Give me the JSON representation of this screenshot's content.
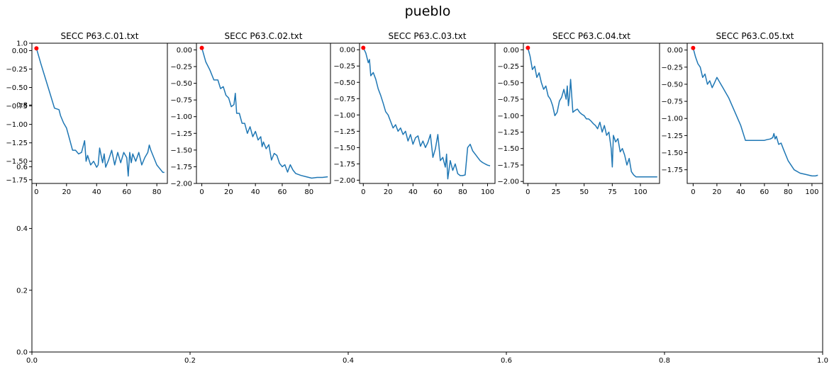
{
  "figure": {
    "title": "pueblo"
  },
  "chart_data": [
    {
      "type": "line",
      "role": "background-axes",
      "title": "",
      "xlim": [
        0,
        1
      ],
      "ylim": [
        0,
        1
      ],
      "x_ticks": [
        0.0,
        0.2,
        0.4,
        0.6,
        0.8,
        1.0
      ],
      "x_tick_labels": [
        "0.0",
        "0.2",
        "0.4",
        "0.6",
        "0.8",
        "1.0"
      ],
      "y_ticks": [
        0.0,
        0.2,
        0.4,
        0.6,
        0.8,
        1.0
      ],
      "y_tick_labels": [
        "0.0",
        "0.2",
        "0.4",
        "0.6",
        "0.8",
        "1.0"
      ],
      "series": []
    },
    {
      "type": "line",
      "title": "SECC P63.C.01.txt",
      "xlim": [
        -3,
        87
      ],
      "ylim": [
        -1.8,
        0.1
      ],
      "x_ticks": [
        0,
        20,
        40,
        60,
        80
      ],
      "x_tick_labels": [
        "0",
        "20",
        "40",
        "60",
        "80"
      ],
      "y_ticks": [
        0.0,
        -0.25,
        -0.5,
        -0.75,
        -1.0,
        -1.25,
        -1.5,
        -1.75
      ],
      "y_tick_labels": [
        "0.00",
        "−0.25",
        "−0.50",
        "−0.75",
        "−1.00",
        "−1.25",
        "−1.50",
        "−1.75"
      ],
      "marker": {
        "x": 0,
        "y": 0.03,
        "color": "#ff0000"
      },
      "line_color": "#1f77b4",
      "series": [
        {
          "x": [
            0,
            3,
            6,
            9,
            12,
            15,
            16,
            18,
            20,
            22,
            24,
            26,
            28,
            30,
            32,
            33,
            34,
            36,
            38,
            40,
            41,
            42,
            44,
            45,
            46,
            48,
            50,
            52,
            54,
            56,
            58,
            60,
            61,
            62,
            63,
            64,
            66,
            68,
            70,
            72,
            74,
            75,
            76,
            78,
            80,
            82,
            84,
            85
          ],
          "y": [
            0.03,
            -0.18,
            -0.38,
            -0.58,
            -0.78,
            -0.8,
            -0.88,
            -0.98,
            -1.05,
            -1.2,
            -1.35,
            -1.35,
            -1.4,
            -1.38,
            -1.22,
            -1.5,
            -1.42,
            -1.55,
            -1.5,
            -1.58,
            -1.55,
            -1.32,
            -1.52,
            -1.4,
            -1.58,
            -1.48,
            -1.35,
            -1.55,
            -1.38,
            -1.52,
            -1.38,
            -1.45,
            -1.7,
            -1.38,
            -1.52,
            -1.4,
            -1.5,
            -1.38,
            -1.55,
            -1.45,
            -1.38,
            -1.28,
            -1.35,
            -1.45,
            -1.55,
            -1.6,
            -1.65,
            -1.65
          ]
        }
      ]
    },
    {
      "type": "line",
      "title": "SECC P63.C.02.txt",
      "xlim": [
        -4,
        96
      ],
      "ylim": [
        -2.0,
        0.1
      ],
      "x_ticks": [
        0,
        20,
        40,
        60,
        80
      ],
      "x_tick_labels": [
        "0",
        "20",
        "40",
        "60",
        "80"
      ],
      "y_ticks": [
        0.0,
        -0.25,
        -0.5,
        -0.75,
        -1.0,
        -1.25,
        -1.5,
        -1.75,
        -2.0
      ],
      "y_tick_labels": [
        "0.00",
        "−0.25",
        "−0.50",
        "−0.75",
        "−1.00",
        "−1.25",
        "−1.50",
        "−1.75",
        "−2.00"
      ],
      "marker": {
        "x": 0,
        "y": 0.03,
        "color": "#ff0000"
      },
      "line_color": "#1f77b4",
      "series": [
        {
          "x": [
            0,
            3,
            6,
            9,
            12,
            14,
            16,
            18,
            20,
            22,
            24,
            25,
            26,
            28,
            30,
            32,
            34,
            36,
            38,
            40,
            42,
            44,
            45,
            46,
            48,
            50,
            52,
            54,
            56,
            58,
            60,
            62,
            64,
            66,
            68,
            70,
            74,
            78,
            82,
            86,
            90,
            94
          ],
          "y": [
            0.03,
            -0.18,
            -0.3,
            -0.45,
            -0.45,
            -0.58,
            -0.55,
            -0.68,
            -0.72,
            -0.85,
            -0.82,
            -0.65,
            -0.95,
            -0.95,
            -1.1,
            -1.1,
            -1.25,
            -1.15,
            -1.3,
            -1.22,
            -1.35,
            -1.3,
            -1.45,
            -1.38,
            -1.48,
            -1.42,
            -1.65,
            -1.55,
            -1.58,
            -1.7,
            -1.75,
            -1.72,
            -1.83,
            -1.72,
            -1.8,
            -1.85,
            -1.88,
            -1.9,
            -1.92,
            -1.91,
            -1.91,
            -1.9
          ]
        }
      ]
    },
    {
      "type": "line",
      "title": "SECC P63.C.03.txt",
      "xlim": [
        -3,
        106
      ],
      "ylim": [
        -2.05,
        0.1
      ],
      "x_ticks": [
        0,
        20,
        40,
        60,
        80,
        100
      ],
      "x_tick_labels": [
        "0",
        "20",
        "40",
        "60",
        "80",
        "100"
      ],
      "y_ticks": [
        0.0,
        -0.25,
        -0.5,
        -0.75,
        -1.0,
        -1.25,
        -1.5,
        -1.75,
        -2.0
      ],
      "y_tick_labels": [
        "0.00",
        "−0.25",
        "−0.50",
        "−0.75",
        "−1.00",
        "−1.25",
        "−1.50",
        "−1.75",
        "−2.00"
      ],
      "marker": {
        "x": 0,
        "y": 0.03,
        "color": "#ff0000"
      },
      "line_color": "#1f77b4",
      "series": [
        {
          "x": [
            0,
            2,
            4,
            5,
            6,
            8,
            10,
            12,
            14,
            16,
            18,
            20,
            22,
            24,
            26,
            28,
            30,
            32,
            34,
            36,
            38,
            40,
            42,
            44,
            46,
            48,
            50,
            52,
            54,
            56,
            58,
            60,
            62,
            64,
            66,
            67,
            68,
            70,
            72,
            74,
            76,
            78,
            80,
            82,
            84,
            86,
            88,
            90,
            92,
            94,
            96,
            98,
            100,
            102
          ],
          "y": [
            0.03,
            -0.05,
            -0.2,
            -0.15,
            -0.4,
            -0.35,
            -0.45,
            -0.6,
            -0.7,
            -0.82,
            -0.95,
            -1.0,
            -1.1,
            -1.2,
            -1.15,
            -1.25,
            -1.2,
            -1.3,
            -1.25,
            -1.4,
            -1.3,
            -1.45,
            -1.35,
            -1.32,
            -1.48,
            -1.4,
            -1.5,
            -1.42,
            -1.3,
            -1.65,
            -1.52,
            -1.3,
            -1.7,
            -1.65,
            -1.8,
            -1.6,
            -1.98,
            -1.7,
            -1.85,
            -1.75,
            -1.9,
            -1.93,
            -1.93,
            -1.92,
            -1.5,
            -1.45,
            -1.55,
            -1.6,
            -1.65,
            -1.7,
            -1.73,
            -1.75,
            -1.77,
            -1.78
          ]
        }
      ]
    },
    {
      "type": "line",
      "title": "SECC P63.C.04.txt",
      "xlim": [
        -4,
        117
      ],
      "ylim": [
        -2.03,
        0.1
      ],
      "x_ticks": [
        0,
        25,
        50,
        75,
        100
      ],
      "x_tick_labels": [
        "0",
        "25",
        "50",
        "75",
        "100"
      ],
      "y_ticks": [
        0.0,
        -0.25,
        -0.5,
        -0.75,
        -1.0,
        -1.25,
        -1.5,
        -1.75,
        -2.0
      ],
      "y_tick_labels": [
        "0.00",
        "−0.25",
        "−0.50",
        "−0.75",
        "−1.00",
        "−1.25",
        "−1.50",
        "−1.75",
        "−2.00"
      ],
      "marker": {
        "x": 0,
        "y": 0.03,
        "color": "#ff0000"
      },
      "line_color": "#1f77b4",
      "series": [
        {
          "x": [
            0,
            2,
            4,
            6,
            8,
            10,
            12,
            14,
            16,
            18,
            20,
            22,
            24,
            26,
            28,
            30,
            32,
            34,
            35,
            36,
            37,
            38,
            40,
            42,
            44,
            46,
            48,
            50,
            52,
            54,
            56,
            58,
            60,
            62,
            64,
            66,
            68,
            70,
            72,
            74,
            75,
            76,
            78,
            80,
            82,
            84,
            86,
            88,
            90,
            92,
            94,
            96,
            100,
            105,
            110,
            115
          ],
          "y": [
            0.03,
            -0.1,
            -0.3,
            -0.25,
            -0.42,
            -0.35,
            -0.5,
            -0.6,
            -0.55,
            -0.7,
            -0.75,
            -0.85,
            -1.0,
            -0.95,
            -0.78,
            -0.72,
            -0.6,
            -0.75,
            -0.55,
            -0.85,
            -0.7,
            -0.45,
            -0.95,
            -0.92,
            -0.9,
            -0.95,
            -0.98,
            -1.0,
            -1.05,
            -1.05,
            -1.08,
            -1.12,
            -1.15,
            -1.2,
            -1.1,
            -1.25,
            -1.15,
            -1.3,
            -1.25,
            -1.5,
            -1.78,
            -1.3,
            -1.4,
            -1.35,
            -1.55,
            -1.5,
            -1.6,
            -1.75,
            -1.65,
            -1.85,
            -1.9,
            -1.93,
            -1.93,
            -1.93,
            -1.93,
            -1.93
          ]
        }
      ]
    },
    {
      "type": "line",
      "title": "SECC P63.C.05.txt",
      "xlim": [
        -5,
        109
      ],
      "ylim": [
        -1.95,
        0.1
      ],
      "x_ticks": [
        0,
        20,
        40,
        60,
        80,
        100
      ],
      "x_tick_labels": [
        "0",
        "20",
        "40",
        "60",
        "80",
        "100"
      ],
      "y_ticks": [
        0.0,
        -0.25,
        -0.5,
        -0.75,
        -1.0,
        -1.25,
        -1.5,
        -1.75
      ],
      "y_tick_labels": [
        "0.00",
        "−0.25",
        "−0.50",
        "−0.75",
        "−1.00",
        "−1.25",
        "−1.50",
        "−1.75"
      ],
      "marker": {
        "x": 0,
        "y": 0.03,
        "color": "#ff0000"
      },
      "line_color": "#1f77b4",
      "series": [
        {
          "x": [
            0,
            2,
            4,
            6,
            8,
            10,
            12,
            14,
            16,
            18,
            20,
            25,
            30,
            35,
            40,
            44,
            50,
            55,
            60,
            62,
            65,
            67,
            68,
            69,
            70,
            72,
            74,
            76,
            80,
            85,
            90,
            95,
            100,
            103,
            105
          ],
          "y": [
            0.03,
            -0.1,
            -0.2,
            -0.25,
            -0.4,
            -0.35,
            -0.5,
            -0.45,
            -0.55,
            -0.48,
            -0.4,
            -0.55,
            -0.7,
            -0.9,
            -1.1,
            -1.32,
            -1.32,
            -1.32,
            -1.32,
            -1.31,
            -1.3,
            -1.28,
            -1.22,
            -1.3,
            -1.26,
            -1.38,
            -1.36,
            -1.45,
            -1.62,
            -1.75,
            -1.8,
            -1.82,
            -1.84,
            -1.84,
            -1.83
          ]
        }
      ]
    }
  ]
}
